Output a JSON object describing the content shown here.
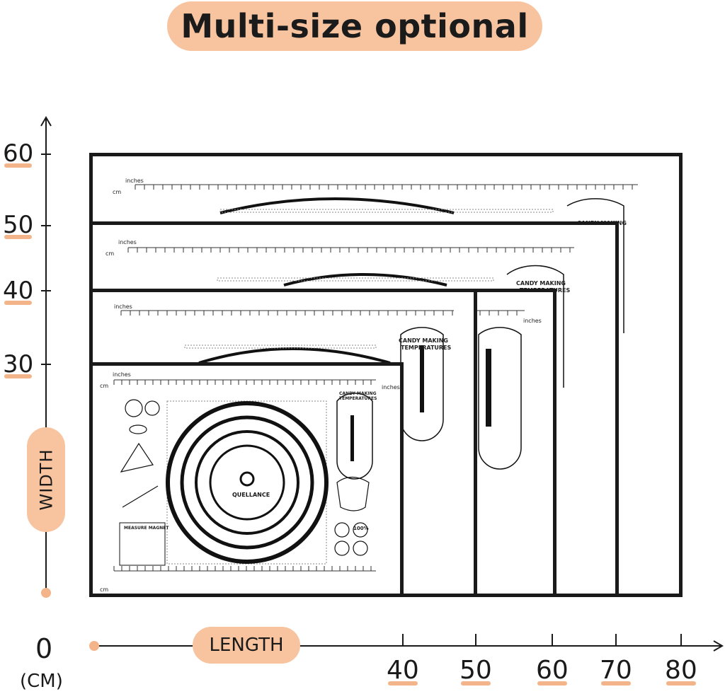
{
  "title": "Multi-size optional",
  "axis": {
    "width_label": "WIDTH",
    "length_label": "LENGTH",
    "origin_label": "0",
    "unit_label": "(CM)",
    "y_ticks": [
      "60",
      "50",
      "40",
      "30"
    ],
    "x_ticks": [
      "40",
      "50",
      "60",
      "70",
      "80"
    ]
  },
  "mats": [
    {
      "size": "80x60",
      "length_cm": 80,
      "width_cm": 60
    },
    {
      "size": "70x50",
      "length_cm": 70,
      "width_cm": 50
    },
    {
      "size": "60x40",
      "length_cm": 60,
      "width_cm": 40
    },
    {
      "size": "50x40",
      "length_cm": 50,
      "width_cm": 40
    },
    {
      "size": "40x30",
      "length_cm": 40,
      "width_cm": 30
    }
  ],
  "mat_text": {
    "inches": "inches",
    "cm": "cm",
    "candy_title": "CANDY MAKING",
    "candy_title_2": "TEMPERATURES",
    "brand": "QUELLANCE",
    "measure": "MEASURE MAGNET",
    "pct": "100%"
  },
  "colors": {
    "accent": "#f8c4a0",
    "line": "#1a1a1a"
  }
}
